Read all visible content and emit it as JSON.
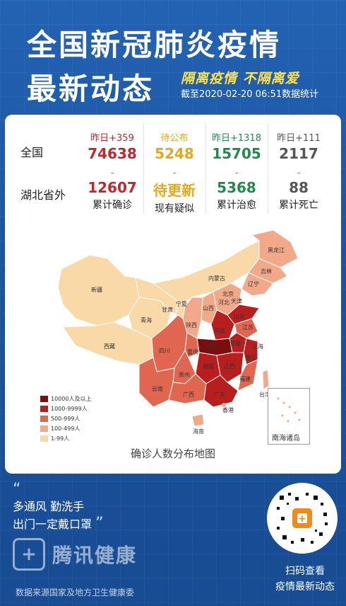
{
  "header": {
    "title_line1": "全国新冠肺炎疫情",
    "title_line2": "最新动态",
    "slogan": "隔离疫情 不隔离爱",
    "as_of": "截至2020-02-20 06:51数据统计"
  },
  "stats": {
    "row_labels": [
      "全国",
      "湖北省外"
    ],
    "columns": [
      {
        "delta": "昨日+359",
        "national": "74638",
        "dash": "-",
        "outside_hubei": "12607",
        "label": "累计确诊",
        "color": "#c1272d"
      },
      {
        "delta": "待公布",
        "national": "5248",
        "dash": "-",
        "outside_hubei": "待更新",
        "label": "现有疑似",
        "color": "#e6a817"
      },
      {
        "delta": "昨日+1318",
        "national": "15705",
        "dash": "-",
        "outside_hubei": "5368",
        "label": "累计治愈",
        "color": "#1f8a4c"
      },
      {
        "delta": "昨日+111",
        "national": "2117",
        "dash": "-",
        "outside_hubei": "88",
        "label": "累计死亡",
        "color": "#555555"
      }
    ]
  },
  "map": {
    "title": "确诊人数分布地图",
    "legend": [
      {
        "label": "10000人及以上",
        "color": "#7a0d0d"
      },
      {
        "label": "1000-9999人",
        "color": "#b81e1e"
      },
      {
        "label": "500-999人",
        "color": "#e0664f"
      },
      {
        "label": "100-499人",
        "color": "#f2a98a"
      },
      {
        "label": "1-99人",
        "color": "#fad9a8"
      }
    ],
    "regions": [
      "新疆",
      "西藏",
      "青海",
      "甘肃",
      "内蒙古",
      "黑龙江",
      "吉林",
      "辽宁",
      "北京",
      "天津",
      "河北",
      "山西",
      "陕西",
      "宁夏",
      "山东",
      "河南",
      "江苏",
      "安徽",
      "上海",
      "湖北",
      "浙江",
      "四川",
      "重庆",
      "湖南",
      "江西",
      "贵州",
      "云南",
      "广西",
      "广东",
      "福建",
      "台湾",
      "香港",
      "海南"
    ],
    "inset_label": "南海诸岛"
  },
  "tips": {
    "open_quote": "“",
    "line1": "多通风  勤洗手",
    "line2": "出门一定戴口罩",
    "close_quote": "”"
  },
  "brand": {
    "name": "腾讯健康"
  },
  "footer": {
    "source": "数据来源国家及地方卫生健康委",
    "scan_line1": "扫码查看",
    "scan_line2": "疫情最新动态"
  }
}
